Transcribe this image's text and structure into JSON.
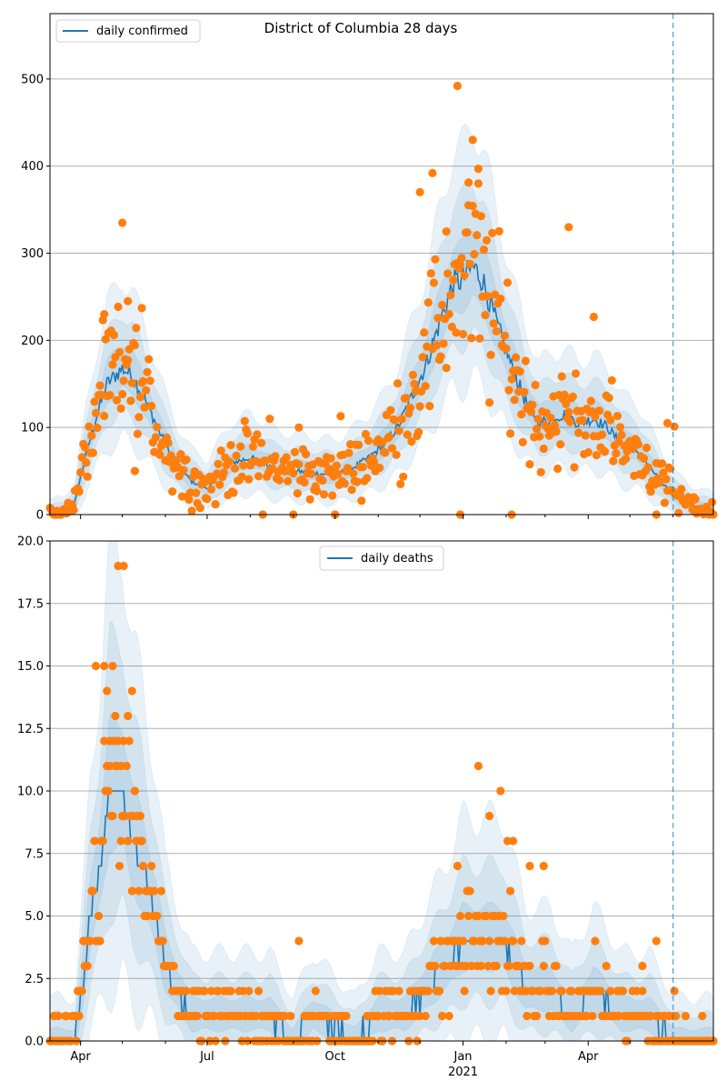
{
  "chart_data": [
    {
      "type": "line",
      "title": "District of Columbia 28 days",
      "legend": {
        "placement": "top-left",
        "label": "daily confirmed"
      },
      "grid": "y",
      "ylim": [
        0,
        575
      ],
      "yticks": [
        0,
        100,
        200,
        300,
        400,
        500
      ],
      "xlim": [
        "2020-03-10",
        "2021-06-30"
      ],
      "vline": "2021-06-01",
      "colors": {
        "line": "#1f77b4",
        "points": "#ff7f0e",
        "band": "#1f77b4",
        "vline": "#1f77b4"
      },
      "median_key": [
        [
          "2020-03-10",
          0
        ],
        [
          "2020-03-20",
          2
        ],
        [
          "2020-03-28",
          15
        ],
        [
          "2020-04-05",
          70
        ],
        [
          "2020-04-12",
          110
        ],
        [
          "2020-04-20",
          150
        ],
        [
          "2020-05-01",
          168
        ],
        [
          "2020-05-08",
          160
        ],
        [
          "2020-05-15",
          140
        ],
        [
          "2020-05-25",
          105
        ],
        [
          "2020-06-01",
          80
        ],
        [
          "2020-06-10",
          55
        ],
        [
          "2020-06-20",
          38
        ],
        [
          "2020-07-01",
          30
        ],
        [
          "2020-07-10",
          45
        ],
        [
          "2020-07-20",
          60
        ],
        [
          "2020-08-01",
          65
        ],
        [
          "2020-08-10",
          60
        ],
        [
          "2020-08-20",
          52
        ],
        [
          "2020-09-01",
          50
        ],
        [
          "2020-09-15",
          48
        ],
        [
          "2020-10-01",
          45
        ],
        [
          "2020-10-15",
          55
        ],
        [
          "2020-10-25",
          65
        ],
        [
          "2020-11-05",
          80
        ],
        [
          "2020-11-15",
          100
        ],
        [
          "2020-11-25",
          135
        ],
        [
          "2020-12-05",
          170
        ],
        [
          "2020-12-15",
          220
        ],
        [
          "2020-12-25",
          265
        ],
        [
          "2021-01-01",
          270
        ],
        [
          "2021-01-08",
          285
        ],
        [
          "2021-01-15",
          270
        ],
        [
          "2021-01-25",
          220
        ],
        [
          "2021-02-05",
          170
        ],
        [
          "2021-02-15",
          130
        ],
        [
          "2021-02-25",
          105
        ],
        [
          "2021-03-05",
          110
        ],
        [
          "2021-03-15",
          115
        ],
        [
          "2021-03-25",
          105
        ],
        [
          "2021-04-05",
          110
        ],
        [
          "2021-04-15",
          100
        ],
        [
          "2021-04-25",
          80
        ],
        [
          "2021-05-05",
          75
        ],
        [
          "2021-05-15",
          55
        ],
        [
          "2021-05-25",
          35
        ],
        [
          "2021-06-05",
          18
        ],
        [
          "2021-06-15",
          10
        ],
        [
          "2021-06-30",
          5
        ]
      ],
      "outliers": [
        [
          "2020-04-18",
          230
        ],
        [
          "2020-05-01",
          335
        ],
        [
          "2020-05-05",
          245
        ],
        [
          "2020-05-15",
          237
        ],
        [
          "2020-05-10",
          50
        ],
        [
          "2020-08-15",
          110
        ],
        [
          "2020-09-05",
          100
        ],
        [
          "2020-08-10",
          0
        ],
        [
          "2020-09-01",
          0
        ],
        [
          "2020-10-01",
          0
        ],
        [
          "2020-10-05",
          113
        ],
        [
          "2020-12-01",
          370
        ],
        [
          "2020-12-10",
          392
        ],
        [
          "2020-12-20",
          325
        ],
        [
          "2020-12-28",
          492
        ],
        [
          "2021-01-08",
          430
        ],
        [
          "2021-01-12",
          397
        ],
        [
          "2021-01-05",
          355
        ],
        [
          "2020-12-30",
          0
        ],
        [
          "2021-02-05",
          0
        ],
        [
          "2021-03-18",
          330
        ],
        [
          "2021-04-05",
          227
        ],
        [
          "2021-05-20",
          0
        ],
        [
          "2021-06-02",
          101
        ],
        [
          "2021-05-28",
          105
        ],
        [
          "2021-05-30",
          53
        ]
      ]
    },
    {
      "type": "line",
      "legend": {
        "placement": "top-center",
        "label": "daily deaths"
      },
      "grid": "y",
      "ylim": [
        0,
        20
      ],
      "yticks": [
        "0.0",
        "2.5",
        "5.0",
        "7.5",
        "10.0",
        "12.5",
        "15.0",
        "17.5",
        "20.0"
      ],
      "xlim": [
        "2020-03-10",
        "2021-06-30"
      ],
      "xticks": [
        "Apr",
        "Jul",
        "Oct",
        "Jan",
        "Apr"
      ],
      "xtick_sublabel": "2021",
      "vline": "2021-06-01",
      "colors": {
        "line": "#1f77b4",
        "points": "#ff7f0e",
        "band": "#1f77b4",
        "vline": "#1f77b4"
      },
      "median_key": [
        [
          "2020-03-10",
          0
        ],
        [
          "2020-03-28",
          0
        ],
        [
          "2020-04-02",
          2
        ],
        [
          "2020-04-08",
          5
        ],
        [
          "2020-04-15",
          7
        ],
        [
          "2020-04-22",
          10
        ],
        [
          "2020-05-01",
          10
        ],
        [
          "2020-05-08",
          8
        ],
        [
          "2020-05-15",
          7
        ],
        [
          "2020-05-25",
          5
        ],
        [
          "2020-06-01",
          3
        ],
        [
          "2020-06-10",
          2
        ],
        [
          "2020-06-20",
          1
        ],
        [
          "2020-07-15",
          1
        ],
        [
          "2020-08-15",
          1
        ],
        [
          "2020-09-01",
          0
        ],
        [
          "2020-09-15",
          1
        ],
        [
          "2020-10-15",
          0
        ],
        [
          "2020-11-01",
          1
        ],
        [
          "2020-11-20",
          1
        ],
        [
          "2020-12-05",
          2
        ],
        [
          "2020-12-20",
          3
        ],
        [
          "2021-01-01",
          4
        ],
        [
          "2021-01-15",
          4
        ],
        [
          "2021-01-30",
          4
        ],
        [
          "2021-02-15",
          2
        ],
        [
          "2021-03-05",
          2
        ],
        [
          "2021-03-20",
          1
        ],
        [
          "2021-04-05",
          2
        ],
        [
          "2021-04-25",
          1
        ],
        [
          "2021-05-15",
          1
        ],
        [
          "2021-06-02",
          0
        ],
        [
          "2021-06-30",
          0
        ]
      ],
      "outliers": [
        [
          "2020-04-28",
          19
        ],
        [
          "2020-05-02",
          19
        ],
        [
          "2020-04-18",
          15
        ],
        [
          "2020-04-24",
          15
        ],
        [
          "2020-04-12",
          15
        ],
        [
          "2020-05-08",
          14
        ],
        [
          "2020-04-20",
          14
        ],
        [
          "2020-05-05",
          13
        ],
        [
          "2020-04-26",
          13
        ],
        [
          "2020-04-22",
          12
        ],
        [
          "2020-04-30",
          11
        ],
        [
          "2020-05-10",
          10
        ],
        [
          "2020-05-14",
          9
        ],
        [
          "2021-01-12",
          11
        ],
        [
          "2021-01-28",
          10
        ],
        [
          "2021-01-20",
          9
        ],
        [
          "2021-02-02",
          8
        ],
        [
          "2021-02-06",
          8
        ],
        [
          "2020-12-28",
          7
        ],
        [
          "2021-02-18",
          7
        ],
        [
          "2021-02-28",
          7
        ],
        [
          "2020-09-05",
          4
        ],
        [
          "2021-05-20",
          4
        ],
        [
          "2021-05-10",
          3
        ],
        [
          "2021-06-02",
          2
        ]
      ]
    }
  ]
}
